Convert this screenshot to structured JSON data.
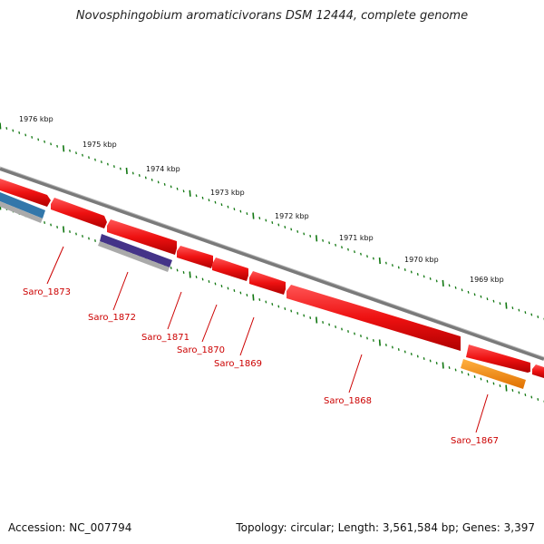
{
  "title": "Novosphingobium aromaticivorans DSM 12444, complete genome",
  "accession": "Accession: NC_007794",
  "summary": "Topology: circular; Length: 3,561,584 bp; Genes: 3,397",
  "kbp_labels": [
    "1976 kbp",
    "1975 kbp",
    "1974 kbp",
    "1973 kbp",
    "1972 kbp",
    "1971 kbp",
    "1970 kbp",
    "1969 kbp"
  ],
  "gene_labels": [
    "Saro_1873",
    "Saro_1872",
    "Saro_1871",
    "Saro_1870",
    "Saro_1869",
    "Saro_1868",
    "Saro_1867"
  ],
  "colors": {
    "gene": "#ee1111",
    "backbone": "#7a7a7a",
    "tick": "#117711",
    "label": "#cc0000",
    "blue_feature": "#3377aa",
    "purple_feature": "#443388",
    "orange_feature": "#ff8800"
  }
}
